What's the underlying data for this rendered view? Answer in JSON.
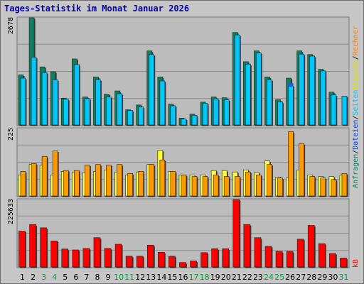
{
  "title": "Tages-Statistik im Monat Januar 2026",
  "colors": {
    "anfragen": "#0c8060",
    "dateien": "#00c8ff",
    "seiten": "#ffff33",
    "besuche": "#ff9900",
    "rechner": "#ff7f00",
    "kb": "#ff0000",
    "weekend_label": "#00a040"
  },
  "chart_data": [
    {
      "type": "bar",
      "panel": "top",
      "ymax_label": "2678",
      "ylim": [
        0,
        2678
      ],
      "grid": true,
      "categories": [
        "1",
        "2",
        "3",
        "4",
        "5",
        "6",
        "7",
        "8",
        "9",
        "10",
        "11",
        "12",
        "13",
        "14",
        "15",
        "16",
        "17",
        "18",
        "19",
        "20",
        "21",
        "22",
        "23",
        "24",
        "25",
        "26",
        "27",
        "28",
        "29",
        "30",
        "31"
      ],
      "series": [
        {
          "name": "Anfragen",
          "values": [
            1250,
            2678,
            1450,
            1330,
            670,
            1650,
            700,
            1200,
            770,
            850,
            380,
            500,
            1850,
            1200,
            520,
            170,
            270,
            570,
            700,
            680,
            2310,
            1580,
            1850,
            1200,
            630,
            1170,
            1850,
            1760,
            1390,
            820,
            0
          ]
        },
        {
          "name": "Dateien",
          "values": [
            1170,
            1690,
            1310,
            1130,
            640,
            1510,
            660,
            1130,
            700,
            780,
            360,
            450,
            1760,
            1100,
            480,
            150,
            240,
            540,
            650,
            630,
            2250,
            1520,
            1800,
            1130,
            580,
            970,
            1770,
            1720,
            1350,
            750,
            720
          ]
        }
      ],
      "highlight": {
        "category": "26",
        "value": 1040
      }
    },
    {
      "type": "bar",
      "panel": "middle",
      "ymax_label": "225",
      "ylim": [
        0,
        225
      ],
      "grid": true,
      "categories": [
        "1",
        "2",
        "3",
        "4",
        "5",
        "6",
        "7",
        "8",
        "9",
        "10",
        "11",
        "12",
        "13",
        "14",
        "15",
        "16",
        "17",
        "18",
        "19",
        "20",
        "21",
        "22",
        "23",
        "24",
        "25",
        "26",
        "27",
        "28",
        "29",
        "30",
        "31"
      ],
      "series": [
        {
          "name": "Seiten",
          "values": [
            70,
            105,
            103,
            70,
            82,
            80,
            78,
            82,
            87,
            80,
            70,
            80,
            105,
            152,
            82,
            70,
            70,
            70,
            85,
            85,
            80,
            87,
            78,
            117,
            63,
            60,
            87,
            70,
            65,
            65,
            70
          ]
        },
        {
          "name": "Besuche",
          "values": [
            82,
            108,
            132,
            150,
            85,
            85,
            103,
            105,
            103,
            105,
            75,
            82,
            105,
            120,
            82,
            70,
            65,
            65,
            70,
            65,
            65,
            80,
            70,
            105,
            60,
            215,
            175,
            65,
            60,
            55,
            75
          ]
        }
      ]
    },
    {
      "type": "bar",
      "panel": "bottom",
      "ymax_label": "225633",
      "ylim": [
        0,
        225633
      ],
      "grid": true,
      "categories": [
        "1",
        "2",
        "3",
        "4",
        "5",
        "6",
        "7",
        "8",
        "9",
        "10",
        "11",
        "12",
        "13",
        "14",
        "15",
        "16",
        "17",
        "18",
        "19",
        "20",
        "21",
        "22",
        "23",
        "24",
        "25",
        "26",
        "27",
        "28",
        "29",
        "30",
        "31"
      ],
      "series": [
        {
          "name": "kB",
          "values": [
            120000,
            142000,
            131000,
            87000,
            60000,
            57000,
            62000,
            98000,
            62000,
            76000,
            36000,
            36000,
            73000,
            49000,
            36000,
            15000,
            20000,
            48000,
            61000,
            61000,
            225633,
            142000,
            98000,
            69000,
            52000,
            52000,
            93000,
            139000,
            78000,
            45000,
            30000
          ]
        }
      ]
    }
  ],
  "x_labels": {
    "days": [
      "1",
      "2",
      "3",
      "4",
      "5",
      "6",
      "7",
      "8",
      "9",
      "10",
      "11",
      "12",
      "13",
      "14",
      "15",
      "16",
      "17",
      "18",
      "19",
      "20",
      "21",
      "22",
      "23",
      "24",
      "25",
      "26",
      "27",
      "28",
      "29",
      "30",
      "31"
    ],
    "weekend": [
      false,
      false,
      true,
      true,
      false,
      false,
      false,
      false,
      false,
      true,
      true,
      false,
      false,
      false,
      false,
      false,
      true,
      true,
      false,
      false,
      false,
      false,
      false,
      true,
      true,
      false,
      false,
      false,
      false,
      false,
      true
    ]
  },
  "right_labels": {
    "top": [
      {
        "text": "Anfragen",
        "color": "#0c8060"
      },
      {
        "text": "/",
        "color": "#000000"
      },
      {
        "text": "Dateien",
        "color": "#0040ff"
      },
      {
        "text": "/",
        "color": "#000000"
      },
      {
        "text": "Seiten",
        "color": "#00c8ff"
      },
      {
        "text": "Besuche",
        "color": "#e0e000"
      },
      {
        "text": "/",
        "color": "#000000"
      },
      {
        "text": "Rechner",
        "color": "#ff7f00"
      }
    ],
    "bottom": [
      {
        "text": "kB",
        "color": "#ff0000"
      }
    ]
  }
}
